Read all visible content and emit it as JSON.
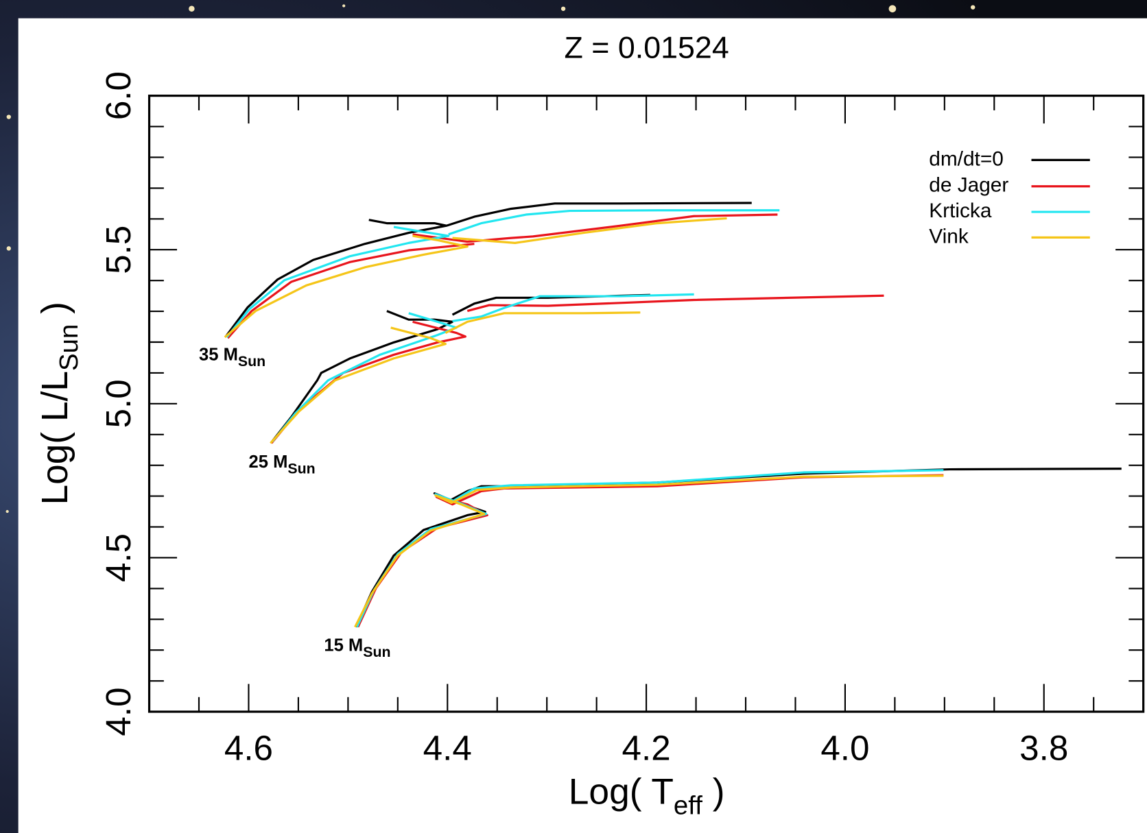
{
  "chart_data": {
    "type": "line",
    "title": "Z = 0.01524",
    "x_label": [
      "Log( T",
      "eff",
      " )"
    ],
    "y_label": [
      "Log( L/L",
      "Sun",
      " )"
    ],
    "xlim": [
      4.7,
      3.7
    ],
    "ylim": [
      4.0,
      6.0
    ],
    "xticks": [
      4.6,
      4.4,
      4.2,
      {
        "value": 4.0,
        "label": "4.0"
      },
      3.8
    ],
    "yticks": [
      {
        "value": 4.0,
        "label": "4.0"
      },
      4.5,
      {
        "value": 5.0,
        "label": "5.0"
      },
      5.5,
      {
        "value": 6.0,
        "label": "6.0"
      }
    ],
    "x_minor_ticks": [
      4.65,
      4.55,
      4.5,
      4.45,
      4.35,
      4.3,
      4.25,
      4.15,
      4.1,
      4.05,
      3.95,
      3.9,
      3.85,
      3.75
    ],
    "y_minor_ticks": [
      4.1,
      4.2,
      4.3,
      4.4,
      4.6,
      4.7,
      4.8,
      4.9,
      5.1,
      5.2,
      5.3,
      5.4,
      5.6,
      5.7,
      5.8,
      5.9
    ],
    "annotations": [
      {
        "text": "35 M",
        "sub": "Sun"
      },
      {
        "text": "25 M",
        "sub": "Sun"
      },
      {
        "text": "15 M",
        "sub": "Sun"
      }
    ],
    "series": [
      {
        "name": "dm/dt=0",
        "color": "#000000",
        "x": [
          4.623,
          4.601,
          4.571,
          4.535,
          4.483,
          4.439,
          4.401,
          4.413,
          4.461,
          4.479,
          null,
          4.401,
          4.373,
          4.336,
          4.292,
          4.226,
          4.094,
          null,
          4.577,
          4.557,
          4.531,
          4.527,
          4.498,
          4.454,
          4.41,
          4.395,
          4.413,
          4.439,
          4.461,
          null,
          4.395,
          4.373,
          4.351,
          4.299,
          4.196,
          null,
          4.492,
          4.476,
          4.454,
          4.424,
          4.38,
          4.362,
          4.395,
          4.413,
          4.398,
          4.38,
          4.366,
          4.336,
          4.189,
          4.042,
          3.895,
          3.722
        ],
        "values": [
          5.218,
          5.313,
          5.403,
          5.467,
          5.519,
          5.555,
          5.578,
          5.586,
          5.586,
          5.597,
          null,
          5.578,
          5.607,
          5.633,
          5.65,
          5.65,
          5.652,
          null,
          4.875,
          4.957,
          5.076,
          5.1,
          5.147,
          5.199,
          5.242,
          5.266,
          5.273,
          5.273,
          5.301,
          null,
          5.289,
          5.325,
          5.344,
          5.344,
          5.353,
          null,
          4.275,
          4.389,
          4.507,
          4.59,
          4.638,
          4.649,
          4.685,
          4.709,
          4.685,
          4.716,
          4.732,
          4.732,
          4.744,
          4.773,
          4.787,
          4.789
        ]
      },
      {
        "name": "de Jager",
        "color": "#e8141c",
        "x": [
          4.621,
          4.597,
          4.557,
          4.498,
          4.439,
          4.373,
          null,
          4.435,
          4.38,
          4.336,
          4.314,
          4.226,
          4.152,
          4.068,
          null,
          4.577,
          4.549,
          4.505,
          4.454,
          4.41,
          4.382,
          4.391,
          4.435,
          null,
          4.38,
          4.358,
          4.299,
          4.152,
          3.961,
          null,
          4.49,
          4.472,
          4.446,
          4.41,
          4.36,
          4.38,
          4.411,
          4.395,
          4.366,
          4.343,
          4.189,
          4.042,
          3.901
        ],
        "values": [
          5.213,
          5.301,
          5.396,
          5.46,
          5.498,
          5.519,
          null,
          5.55,
          5.526,
          5.538,
          5.543,
          5.578,
          5.609,
          5.614,
          null,
          4.872,
          4.981,
          5.1,
          5.159,
          5.199,
          5.218,
          5.23,
          5.266,
          null,
          5.301,
          5.32,
          5.318,
          5.337,
          5.351,
          null,
          4.275,
          4.401,
          4.519,
          4.597,
          4.638,
          4.673,
          4.697,
          4.673,
          4.716,
          4.725,
          4.732,
          4.761,
          4.768
        ]
      },
      {
        "name": "Krticka",
        "color": "#22e6f0",
        "x": [
          4.622,
          4.599,
          4.564,
          4.498,
          4.439,
          4.399,
          4.432,
          4.454,
          null,
          4.399,
          4.366,
          4.321,
          4.277,
          4.189,
          4.066,
          null,
          4.576,
          4.553,
          4.52,
          4.468,
          4.41,
          4.391,
          4.41,
          4.439,
          null,
          4.395,
          4.366,
          4.343,
          4.307,
          4.226,
          4.152,
          null,
          4.491,
          4.474,
          4.45,
          4.417,
          4.361,
          4.388,
          4.412,
          4.395,
          4.373,
          4.336,
          4.189,
          4.042,
          3.901
        ],
        "values": [
          5.216,
          5.308,
          5.401,
          5.479,
          5.522,
          5.545,
          5.562,
          5.574,
          null,
          5.55,
          5.586,
          5.614,
          5.626,
          5.628,
          5.628,
          null,
          4.877,
          4.969,
          5.076,
          5.159,
          5.223,
          5.247,
          5.266,
          5.294,
          null,
          5.268,
          5.283,
          5.311,
          5.349,
          5.349,
          5.355,
          null,
          4.275,
          4.394,
          4.512,
          4.593,
          4.642,
          4.678,
          4.706,
          4.683,
          4.725,
          4.735,
          4.744,
          4.777,
          4.784
        ]
      },
      {
        "name": "Vink",
        "color": "#f5c518",
        "x": [
          4.624,
          4.593,
          4.542,
          4.483,
          4.424,
          4.38,
          4.41,
          4.435,
          null,
          4.395,
          4.332,
          4.263,
          4.189,
          4.119,
          null,
          4.578,
          4.549,
          4.513,
          4.454,
          4.402,
          4.417,
          4.457,
          null,
          4.402,
          4.38,
          4.343,
          4.263,
          4.206,
          null,
          4.493,
          4.476,
          4.45,
          4.417,
          4.363,
          4.386,
          4.412,
          4.396,
          4.37,
          4.336,
          4.189,
          4.042,
          3.901
        ],
        "values": [
          5.216,
          5.301,
          5.384,
          5.443,
          5.484,
          5.51,
          5.531,
          5.545,
          null,
          5.538,
          5.522,
          5.555,
          5.586,
          5.602,
          null,
          4.872,
          4.976,
          5.076,
          5.147,
          5.194,
          5.213,
          5.247,
          null,
          5.23,
          5.266,
          5.294,
          5.294,
          5.296,
          null,
          4.275,
          4.384,
          4.507,
          4.588,
          4.642,
          4.673,
          4.702,
          4.678,
          4.72,
          4.728,
          4.737,
          4.763,
          4.766
        ]
      }
    ]
  }
}
